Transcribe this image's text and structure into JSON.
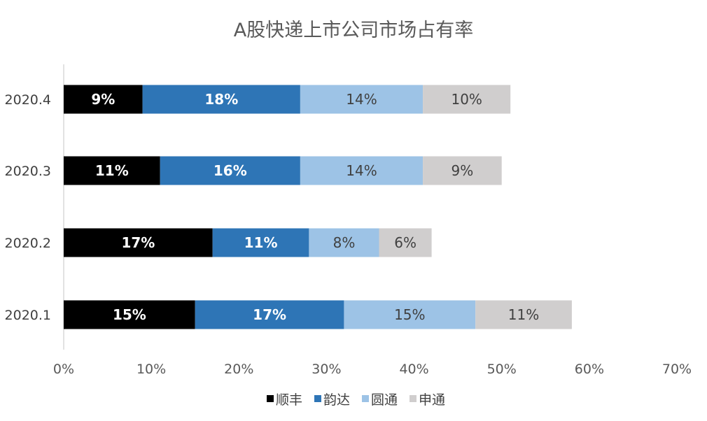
{
  "chart_data": {
    "type": "bar",
    "orientation": "horizontal",
    "stacked": true,
    "title": "A股快递上市公司市场占有率",
    "categories": [
      "2020.1",
      "2020.2",
      "2020.3",
      "2020.4"
    ],
    "series": [
      {
        "name": "顺丰",
        "color": "#000000",
        "label_color": "#ffffff",
        "values": [
          15,
          17,
          11,
          9
        ]
      },
      {
        "name": "韵达",
        "color": "#2e75b6",
        "label_color": "#ffffff",
        "values": [
          17,
          11,
          16,
          18
        ]
      },
      {
        "name": "圆通",
        "color": "#9dc3e6",
        "label_color": "#404040",
        "values": [
          15,
          8,
          14,
          14
        ]
      },
      {
        "name": "申通",
        "color": "#d0cece",
        "label_color": "#404040",
        "values": [
          11,
          6,
          9,
          10
        ]
      }
    ],
    "data_labels": [
      [
        "15%",
        "17%",
        "15%",
        "11%"
      ],
      [
        "17%",
        "11%",
        "8%",
        "6%"
      ],
      [
        "11%",
        "16%",
        "14%",
        "9%"
      ],
      [
        "9%",
        "18%",
        "14%",
        "10%"
      ]
    ],
    "xlim": [
      0,
      70
    ],
    "x_ticks": [
      "0%",
      "10%",
      "20%",
      "30%",
      "40%",
      "50%",
      "60%",
      "70%"
    ],
    "legend_position": "bottom",
    "grid": false
  }
}
